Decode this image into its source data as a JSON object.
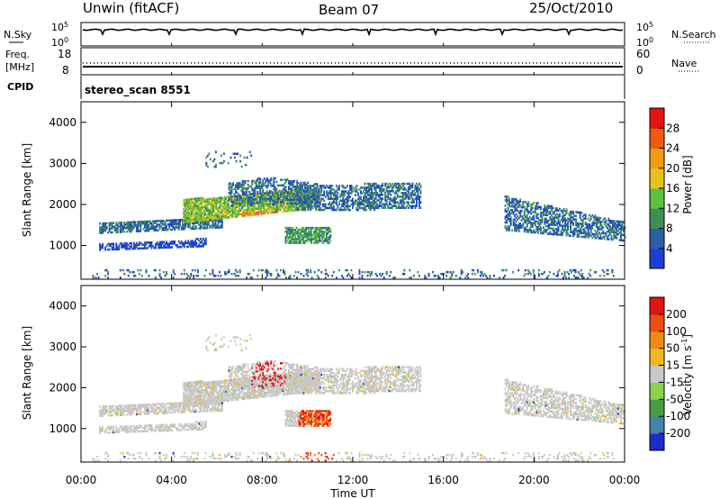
{
  "header": {
    "site": "Unwin (fitACF)",
    "beam": "Beam 07",
    "date": "25/Oct/2010"
  },
  "noise_panel": {
    "left_label": "N.Sky",
    "right_label": "N.Search",
    "ytick_top": "10^5",
    "ytick_bottom": "10^0",
    "ytick_top_right": "10^5",
    "ytick_bottom_right": "10^0"
  },
  "freq_panel": {
    "left_label_1": "Freq.",
    "left_label_2": "[MHz]",
    "right_label": "Nave",
    "left_ticks": [
      "18",
      "8"
    ],
    "right_ticks": [
      "60",
      "0"
    ]
  },
  "cpid_panel": {
    "label": "CPID",
    "value": "stereo_scan 8551"
  },
  "colors": {
    "power": [
      "#1f3dd8",
      "#2b5fa6",
      "#3d8f55",
      "#5fbf3f",
      "#e6c21a",
      "#f29a12",
      "#ee5a12",
      "#e01414"
    ],
    "velocity": [
      "#1e2bc8",
      "#3f86a8",
      "#4c9a4a",
      "#8cd24a",
      "#c8c8c8",
      "#f0b81e",
      "#f08a12",
      "#ee4e10",
      "#e01414"
    ]
  },
  "chart_data": [
    {
      "type": "heatmap",
      "name_panel": "power",
      "ylabel": "Slant Range [km]",
      "yticks": [
        "1000",
        "2000",
        "3000",
        "4000"
      ],
      "ylim": [
        180,
        4500
      ],
      "colorbar_label": "Power [dB]",
      "colorbar_ticks": [
        "4",
        "8",
        "12",
        "16",
        "20",
        "24",
        "28"
      ],
      "colorbar_range": [
        0,
        32
      ]
    },
    {
      "type": "heatmap",
      "name_panel": "velocity",
      "ylabel": "Slant Range [km]",
      "yticks": [
        "1000",
        "2000",
        "3000",
        "4000"
      ],
      "ylim": [
        180,
        4500
      ],
      "colorbar_label": "Velocity [m s",
      "colorbar_label_sup": "-1",
      "colorbar_label_end": "]",
      "colorbar_ticks": [
        "200",
        "100",
        "50",
        "15",
        "-15",
        "-50",
        "-100",
        "-200"
      ]
    }
  ],
  "xaxis": {
    "ticks": [
      "00:00",
      "04:00",
      "08:00",
      "12:00",
      "16:00",
      "20:00",
      "00:00"
    ],
    "label": "Time UT"
  }
}
